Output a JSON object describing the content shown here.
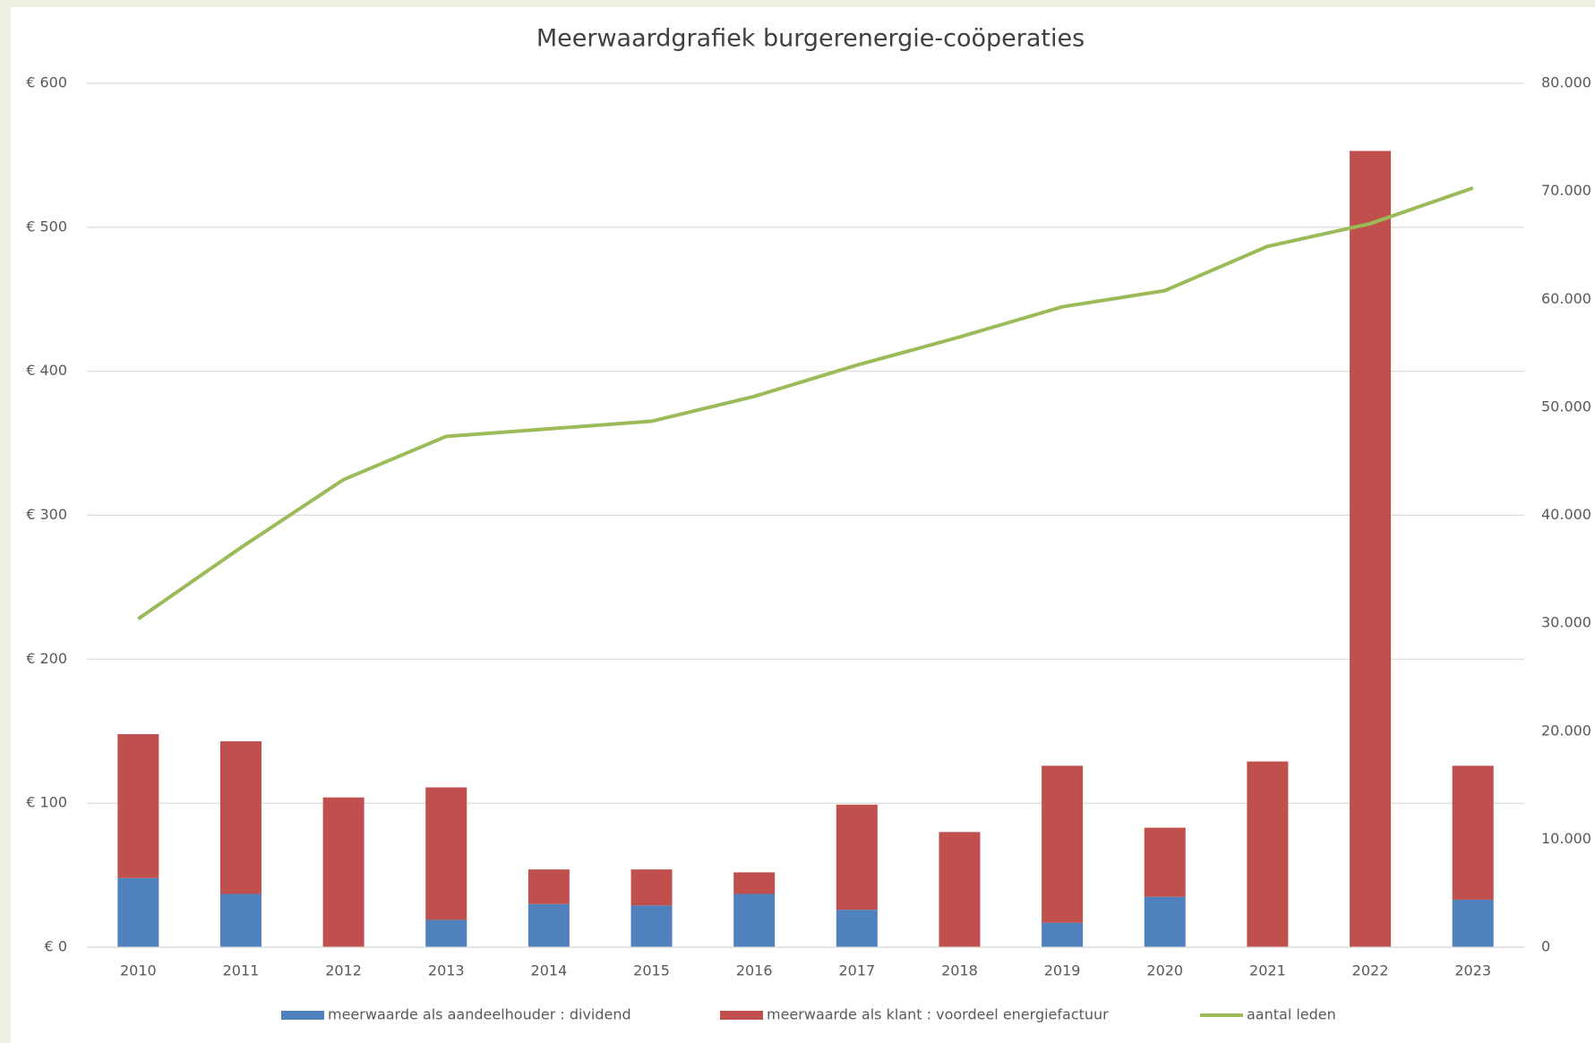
{
  "chart_data": {
    "type": "bar-line",
    "title": "Meerwaardgrafiek burgerenergie-coöperaties",
    "categories": [
      "2010",
      "2011",
      "2012",
      "2013",
      "2014",
      "2015",
      "2016",
      "2017",
      "2018",
      "2019",
      "2020",
      "2021",
      "2022",
      "2023"
    ],
    "series": [
      {
        "name": "meerwaarde als aandeelhouder : dividend",
        "type": "bar",
        "stacked": true,
        "color": "#4f81bd",
        "values": [
          48,
          37,
          0,
          19,
          30,
          29,
          37,
          26,
          0,
          17,
          35,
          0,
          0,
          33
        ]
      },
      {
        "name": "meerwaarde als klant : voordeel energiefactuur",
        "type": "bar",
        "stacked": true,
        "color": "#c0504d",
        "values": [
          100,
          106,
          104,
          92,
          24,
          25,
          15,
          73,
          80,
          109,
          48,
          129,
          553,
          93
        ]
      },
      {
        "name": "aantal leden",
        "type": "line",
        "axis": "y2",
        "color": "#9bbb59",
        "values": [
          30400,
          37000,
          43300,
          47300,
          48000,
          48700,
          51000,
          53900,
          56500,
          59300,
          60800,
          64900,
          67000,
          70300
        ]
      }
    ],
    "ylim": [
      0,
      600
    ],
    "yticks": [
      {
        "value": 0,
        "label": "€ 0"
      },
      {
        "value": 100,
        "label": "€ 100"
      },
      {
        "value": 200,
        "label": "€ 200"
      },
      {
        "value": 300,
        "label": "€ 300"
      },
      {
        "value": 400,
        "label": "€ 400"
      },
      {
        "value": 500,
        "label": "€ 500"
      },
      {
        "value": 600,
        "label": "€ 600"
      }
    ],
    "y2lim": [
      0,
      80000
    ],
    "y2ticks": [
      0,
      {
        "value": 10000,
        "label": "10.000"
      },
      {
        "value": 20000,
        "label": "20.000"
      },
      {
        "value": 30000,
        "label": "30.000"
      },
      {
        "value": 40000,
        "label": "40.000"
      },
      {
        "value": 50000,
        "label": "50.000"
      },
      {
        "value": 60000,
        "label": "60.000"
      },
      {
        "value": 70000,
        "label": "70.000"
      },
      {
        "value": 80000,
        "label": "80.000"
      }
    ],
    "grid": true,
    "legend": "bottom"
  }
}
